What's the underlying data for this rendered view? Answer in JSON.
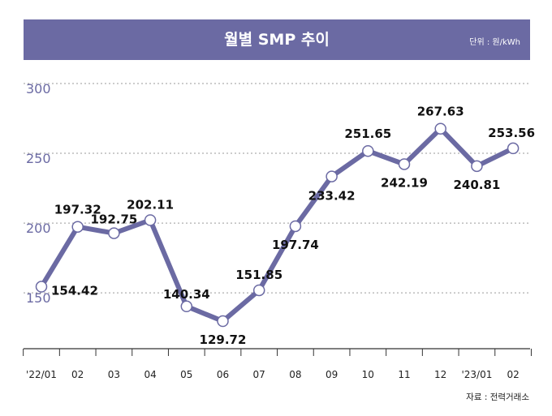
{
  "title": "월별 SMP 추이",
  "unit": "단위 : 원/kWh",
  "source": "자료 : 전력거래소",
  "colors": {
    "line": "#6b6aa3",
    "title_bar": "#6b6aa3",
    "axis_text": "#6b6aa3",
    "grid": "#9a9a9a"
  },
  "chart_data": {
    "type": "line",
    "title": "월별 SMP 추이",
    "xlabel": "",
    "ylabel": "",
    "categories": [
      "'22/01",
      "02",
      "03",
      "04",
      "05",
      "06",
      "07",
      "08",
      "09",
      "10",
      "11",
      "12",
      "'23/01",
      "02"
    ],
    "series": [
      {
        "values": [
          154.42,
          197.32,
          192.75,
          202.11,
          140.34,
          129.72,
          151.85,
          197.74,
          233.42,
          251.65,
          242.19,
          267.63,
          240.81,
          253.56
        ]
      }
    ],
    "value_labels": [
      "154.42",
      "197.32",
      "192.75",
      "202.11",
      "140.34",
      "129.72",
      "151.85",
      "197.74",
      "233.42",
      "251.65",
      "242.19",
      "267.63",
      "240.81",
      "253.56"
    ],
    "yticks": [
      "150",
      "200",
      "250",
      "300"
    ],
    "ylim": [
      110,
      300
    ],
    "grid": true,
    "legend": "none"
  }
}
